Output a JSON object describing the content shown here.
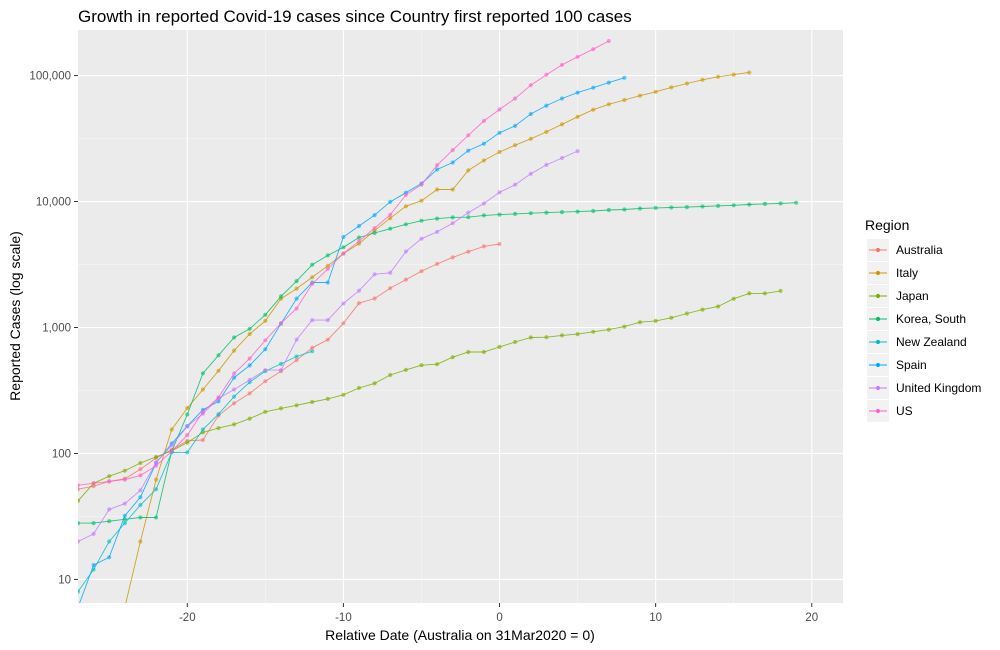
{
  "chart_data": {
    "type": "line",
    "title": "Growth in reported Covid-19 cases since Country first reported 100 cases",
    "xlabel": "Relative Date (Australia on 31Mar2020 = 0)",
    "ylabel": "Reported Cases (log scale)",
    "y_scale": "log10",
    "xlim": [
      -27,
      22
    ],
    "ylim": [
      6.5,
      230000
    ],
    "x_ticks": [
      -20,
      -10,
      0,
      10,
      20
    ],
    "x_tick_labels": [
      "-20",
      "-10",
      "0",
      "10",
      "20"
    ],
    "y_ticks": [
      10,
      100,
      1000,
      10000,
      100000
    ],
    "y_tick_labels": [
      "10",
      "100",
      "1,000",
      "10,000",
      "100,000"
    ],
    "grid": true,
    "legend": {
      "title": "Region",
      "position": "right"
    },
    "series": [
      {
        "name": "Australia",
        "color": "#F8766D",
        "x": [
          -27,
          -26,
          -25,
          -24,
          -23,
          -22,
          -21,
          -20,
          -19,
          -18,
          -17,
          -16,
          -15,
          -14,
          -13,
          -12,
          -11,
          -10,
          -9,
          -8,
          -7,
          -6,
          -5,
          -4,
          -3,
          -2,
          -1,
          0
        ],
        "y": [
          52,
          55,
          60,
          63,
          75,
          92,
          107,
          126,
          128,
          200,
          250,
          300,
          375,
          450,
          550,
          690,
          800,
          1080,
          1560,
          1700,
          2050,
          2400,
          2800,
          3200,
          3600,
          4000,
          4400,
          4600
        ]
      },
      {
        "name": "Italy",
        "color": "#CD9600",
        "x": [
          -25,
          -24,
          -23,
          -22,
          -21,
          -20,
          -19,
          -18,
          -17,
          -16,
          -15,
          -14,
          -13,
          -12,
          -11,
          -10,
          -9,
          -8,
          -7,
          -6,
          -5,
          -4,
          -3,
          -2,
          -1,
          0,
          1,
          2,
          3,
          4,
          5,
          6,
          7,
          8,
          9,
          10,
          11,
          12,
          13,
          14,
          15,
          16
        ],
        "y": [
          3,
          6,
          20,
          62,
          155,
          229,
          322,
          453,
          655,
          888,
          1128,
          1694,
          2036,
          2502,
          3089,
          3858,
          4636,
          5883,
          7375,
          9172,
          10149,
          12462,
          12462,
          17660,
          21157,
          24747,
          27980,
          31506,
          35713,
          41035,
          47021,
          53578,
          59138,
          63927,
          69176,
          74386,
          80589,
          86498,
          92472,
          97689,
          101739,
          105792
        ]
      },
      {
        "name": "Japan",
        "color": "#7CAE00",
        "x": [
          -27,
          -26,
          -25,
          -24,
          -23,
          -22,
          -21,
          -20,
          -19,
          -18,
          -17,
          -16,
          -15,
          -14,
          -13,
          -12,
          -11,
          -10,
          -9,
          -8,
          -7,
          -6,
          -5,
          -4,
          -3,
          -2,
          -1,
          0,
          1,
          2,
          3,
          4,
          5,
          6,
          7,
          8,
          9,
          10,
          11,
          12,
          13,
          14,
          15,
          16,
          17,
          18
        ],
        "y": [
          42,
          58,
          66,
          73,
          84,
          94,
          105,
          122,
          147,
          159,
          170,
          189,
          214,
          228,
          241,
          256,
          271,
          292,
          331,
          360,
          420,
          461,
          502,
          511,
          581,
          639,
          639,
          702,
          767,
          833,
          838,
          865,
          887,
          924,
          963,
          1016,
          1101,
          1128,
          1193,
          1291,
          1387,
          1468,
          1693,
          1866,
          1866,
          1953
        ]
      },
      {
        "name": "Korea, South",
        "color": "#00BE67",
        "x": [
          -27,
          -26,
          -25,
          -24,
          -23,
          -22,
          -21,
          -20,
          -19,
          -18,
          -17,
          -16,
          -15,
          -14,
          -13,
          -12,
          -11,
          -10,
          -9,
          -8,
          -7,
          -6,
          -5,
          -4,
          -3,
          -2,
          -1,
          0,
          1,
          2,
          3,
          4,
          5,
          6,
          7,
          8,
          9,
          10,
          11,
          12,
          13,
          14,
          15,
          16,
          17,
          18,
          19
        ],
        "y": [
          28,
          28,
          29,
          30,
          31,
          31,
          104,
          204,
          433,
          602,
          833,
          977,
          1261,
          1766,
          2337,
          3150,
          3736,
          4335,
          5186,
          5621,
          6088,
          6593,
          7041,
          7314,
          7478,
          7513,
          7755,
          7869,
          7979,
          8086,
          8162,
          8236,
          8320,
          8413,
          8565,
          8652,
          8799,
          8897,
          8961,
          9037,
          9137,
          9241,
          9332,
          9478,
          9583,
          9661,
          9786
        ]
      },
      {
        "name": "New Zealand",
        "color": "#00BFC4",
        "x": [
          -27,
          -26,
          -25,
          -24,
          -23,
          -22,
          -21,
          -20,
          -19,
          -18,
          -17,
          -16,
          -15,
          -14,
          -13,
          -12
        ],
        "y": [
          8,
          12,
          20,
          28,
          39,
          52,
          102,
          102,
          155,
          205,
          283,
          368,
          451,
          514,
          589,
          647
        ]
      },
      {
        "name": "Spain",
        "color": "#00A9FF",
        "x": [
          -27,
          -26,
          -25,
          -24,
          -23,
          -22,
          -21,
          -20,
          -19,
          -18,
          -17,
          -16,
          -15,
          -14,
          -13,
          -12,
          -11,
          -10,
          -9,
          -8,
          -7,
          -6,
          -5,
          -4,
          -3,
          -2,
          -1,
          0,
          1,
          2,
          3,
          4,
          5,
          6,
          7,
          8
        ],
        "y": [
          6,
          13,
          15,
          32,
          45,
          84,
          120,
          165,
          222,
          259,
          400,
          500,
          673,
          1073,
          1695,
          2277,
          2277,
          5232,
          6391,
          7798,
          9942,
          11748,
          13910,
          17963,
          20410,
          25374,
          28768,
          35136,
          39885,
          49515,
          57786,
          65719,
          73235,
          80110,
          87956,
          95923
        ]
      },
      {
        "name": "United Kingdom",
        "color": "#C77CFF",
        "x": [
          -27,
          -26,
          -25,
          -24,
          -23,
          -22,
          -21,
          -20,
          -19,
          -18,
          -17,
          -16,
          -15,
          -14,
          -13,
          -12,
          -11,
          -10,
          -9,
          -8,
          -7,
          -6,
          -5,
          -4,
          -3,
          -2,
          -1,
          0,
          1,
          2,
          3,
          4,
          5
        ],
        "y": [
          20,
          23,
          36,
          40,
          51,
          85,
          116,
          164,
          207,
          274,
          322,
          384,
          459,
          459,
          802,
          1144,
          1145,
          1551,
          1960,
          2642,
          2716,
          4014,
          5067,
          5745,
          6726,
          8164,
          9640,
          11812,
          13615,
          16600,
          19522,
          22141,
          25150
        ]
      },
      {
        "name": "US",
        "color": "#FF61CC",
        "x": [
          -27,
          -26,
          -25,
          -24,
          -23,
          -22,
          -21,
          -20,
          -19,
          -18,
          -17,
          -16,
          -15,
          -14,
          -13,
          -12,
          -11,
          -10,
          -9,
          -8,
          -7,
          -6,
          -5,
          -4,
          -3,
          -2,
          -1,
          0,
          1,
          2,
          3,
          4,
          5,
          6,
          7
        ],
        "y": [
          56,
          58,
          60,
          62,
          67,
          80,
          104,
          140,
          213,
          279,
          431,
          567,
          792,
          1081,
          1414,
          2219,
          2919,
          3867,
          4846,
          6158,
          7850,
          11299,
          13600,
          19442,
          25605,
          33545,
          43702,
          53740,
          65778,
          83836,
          101657,
          121465,
          140909,
          161831,
          188172
        ]
      }
    ]
  }
}
